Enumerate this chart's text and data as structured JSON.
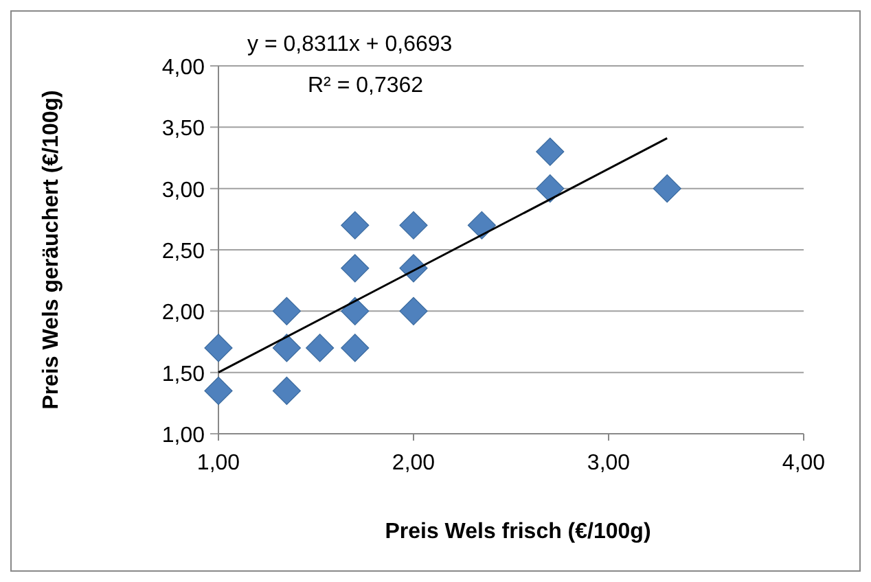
{
  "chart_data": {
    "type": "scatter",
    "xlabel": "Preis Wels frisch (€/100g)",
    "ylabel": "Preis Wels geräuchert (€/100g)",
    "xlim": [
      1,
      4
    ],
    "xticks": [
      {
        "value": 1,
        "label": "1,00"
      },
      {
        "value": 2,
        "label": "2,00"
      },
      {
        "value": 3,
        "label": "3,00"
      },
      {
        "value": 4,
        "label": "4,00"
      }
    ],
    "ylim": [
      1,
      4
    ],
    "yticks": [
      {
        "value": 1,
        "label": "1,00"
      },
      {
        "value": 1.5,
        "label": "1,50"
      },
      {
        "value": 2,
        "label": "2,00"
      },
      {
        "value": 2.5,
        "label": "2,50"
      },
      {
        "value": 3,
        "label": "3,00"
      },
      {
        "value": 3.5,
        "label": "3,50"
      },
      {
        "value": 4,
        "label": "4,00"
      }
    ],
    "grid": "y",
    "annotations": [
      "y = 0,8311x + 0,6693",
      "R² = 0,7362"
    ],
    "series": [
      {
        "marker": "diamond",
        "color": "#4f81bd",
        "x": [
          1,
          1,
          1.35,
          1.35,
          1.35,
          1.52,
          1.7,
          1.7,
          1.7,
          1.7,
          2,
          2,
          2,
          2.35,
          2.7,
          2.7,
          3.3
        ],
        "values": [
          1.7,
          1.35,
          2,
          1.7,
          1.35,
          1.7,
          2.7,
          2.35,
          2,
          1.7,
          2.7,
          2.35,
          2,
          2.7,
          3.3,
          3,
          3
        ]
      },
      {
        "type": "line",
        "marker": "none",
        "color": "#000000",
        "x": [
          1,
          3.3
        ],
        "values": [
          1.5,
          3.41
        ]
      }
    ]
  }
}
